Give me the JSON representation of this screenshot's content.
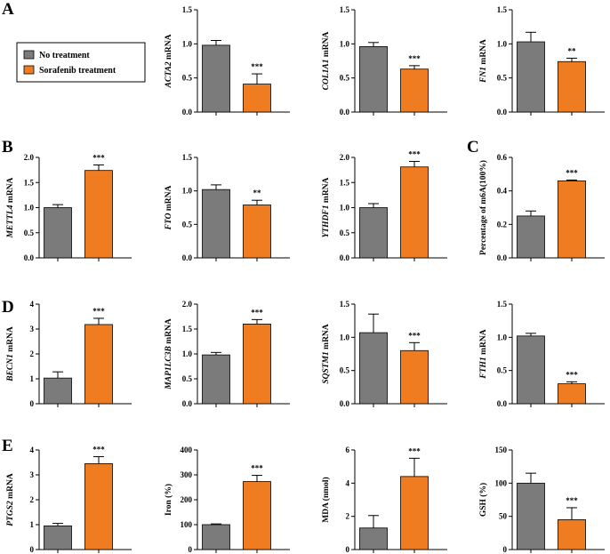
{
  "legend": {
    "entries": [
      {
        "label": "No treatment",
        "color": "#7b7b7b"
      },
      {
        "label": "Sorafenib treatment",
        "color": "#f07c22"
      }
    ]
  },
  "panel_letters": [
    "A",
    "B",
    "C",
    "D",
    "E"
  ],
  "colors": {
    "control": "#7b7b7b",
    "treatment": "#f07c22",
    "axis": "#000000"
  },
  "chart_data": [
    {
      "type": "bar",
      "ylabel": "ACTA2 mRNA",
      "ylabel_italic": "ACTA2",
      "ylabel_rest": " mRNA",
      "ylim": [
        0,
        1.5
      ],
      "yticks": [
        "0.0",
        "0.5",
        "1.0",
        "1.5"
      ],
      "ytick_values": [
        0,
        0.5,
        1.0,
        1.5
      ],
      "values": [
        0.98,
        0.41
      ],
      "errors": [
        0.07,
        0.15
      ],
      "significance": "***"
    },
    {
      "type": "bar",
      "ylabel": "COL1A1 mRNA",
      "ylabel_italic": "COL1A1",
      "ylabel_rest": " mRNA",
      "ylim": [
        0,
        1.5
      ],
      "yticks": [
        "0.0",
        "0.5",
        "1.0",
        "1.5"
      ],
      "ytick_values": [
        0,
        0.5,
        1.0,
        1.5
      ],
      "values": [
        0.96,
        0.63
      ],
      "errors": [
        0.06,
        0.05
      ],
      "significance": "***"
    },
    {
      "type": "bar",
      "ylabel": "FN1 mRNA",
      "ylabel_italic": "FN1",
      "ylabel_rest": " mRNA",
      "ylim": [
        0,
        1.5
      ],
      "yticks": [
        "0.0",
        "0.5",
        "1.0",
        "1.5"
      ],
      "ytick_values": [
        0,
        0.5,
        1.0,
        1.5
      ],
      "values": [
        1.03,
        0.74
      ],
      "errors": [
        0.14,
        0.05
      ],
      "significance": "**"
    },
    {
      "type": "bar",
      "ylabel": "METTL4 mRNA",
      "ylabel_italic": "METTL4",
      "ylabel_rest": " mRNA",
      "ylim": [
        0,
        2.0
      ],
      "yticks": [
        "0.0",
        "0.5",
        "1.0",
        "1.5",
        "2.0"
      ],
      "ytick_values": [
        0,
        0.5,
        1.0,
        1.5,
        2.0
      ],
      "values": [
        1.0,
        1.74
      ],
      "errors": [
        0.06,
        0.11
      ],
      "significance": "***"
    },
    {
      "type": "bar",
      "ylabel": "FTO mRNA",
      "ylabel_italic": "FTO",
      "ylabel_rest": " mRNA",
      "ylim": [
        0,
        1.5
      ],
      "yticks": [
        "0.0",
        "0.5",
        "1.0",
        "1.5"
      ],
      "ytick_values": [
        0,
        0.5,
        1.0,
        1.5
      ],
      "values": [
        1.02,
        0.79
      ],
      "errors": [
        0.07,
        0.07
      ],
      "significance": "**"
    },
    {
      "type": "bar",
      "ylabel": "YTHDF1 mRNA",
      "ylabel_italic": "YTHDF1",
      "ylabel_rest": " mRNA",
      "ylim": [
        0,
        2.0
      ],
      "yticks": [
        "0.0",
        "0.5",
        "1.0",
        "1.5",
        "2.0"
      ],
      "ytick_values": [
        0,
        0.5,
        1.0,
        1.5,
        2.0
      ],
      "values": [
        1.0,
        1.81
      ],
      "errors": [
        0.08,
        0.11
      ],
      "significance": "***"
    },
    {
      "type": "bar",
      "ylabel": "Percentage of m6A(100%)",
      "ylabel_italic": "",
      "ylabel_rest": "Percentage of m6A(100%)",
      "ylim": [
        0,
        0.6
      ],
      "yticks": [
        "0.0",
        "0.2",
        "0.4",
        "0.6"
      ],
      "ytick_values": [
        0,
        0.2,
        0.4,
        0.6
      ],
      "values": [
        0.25,
        0.46
      ],
      "errors": [
        0.03,
        0.005
      ],
      "significance": "***"
    },
    {
      "type": "bar",
      "ylabel": "BECN1 mRNA",
      "ylabel_italic": "BECN1",
      "ylabel_rest": " mRNA",
      "ylim": [
        0,
        4
      ],
      "yticks": [
        "0",
        "1",
        "2",
        "3",
        "4"
      ],
      "ytick_values": [
        0,
        1,
        2,
        3,
        4
      ],
      "values": [
        1.03,
        3.18
      ],
      "errors": [
        0.25,
        0.25
      ],
      "significance": "***"
    },
    {
      "type": "bar",
      "ylabel": "MAP1LC3B mRNA",
      "ylabel_italic": "MAP1LC3B",
      "ylabel_rest": " mRNA",
      "ylim": [
        0,
        2.0
      ],
      "yticks": [
        "0.0",
        "0.5",
        "1.0",
        "1.5",
        "2.0"
      ],
      "ytick_values": [
        0,
        0.5,
        1.0,
        1.5,
        2.0
      ],
      "values": [
        0.98,
        1.6
      ],
      "errors": [
        0.05,
        0.09
      ],
      "significance": "***"
    },
    {
      "type": "bar",
      "ylabel": "SQSTM1 mRNA",
      "ylabel_italic": "SQSTM1",
      "ylabel_rest": " mRNA",
      "ylim": [
        0,
        1.5
      ],
      "yticks": [
        "0.0",
        "0.5",
        "1.0",
        "1.5"
      ],
      "ytick_values": [
        0,
        0.5,
        1.0,
        1.5
      ],
      "values": [
        1.07,
        0.8
      ],
      "errors": [
        0.28,
        0.12
      ],
      "significance": "***"
    },
    {
      "type": "bar",
      "ylabel": "FTH1 mRNA",
      "ylabel_italic": "FTH1",
      "ylabel_rest": " mRNA",
      "ylim": [
        0,
        1.5
      ],
      "yticks": [
        "0.0",
        "0.5",
        "1.0",
        "1.5"
      ],
      "ytick_values": [
        0,
        0.5,
        1.0,
        1.5
      ],
      "values": [
        1.02,
        0.3
      ],
      "errors": [
        0.04,
        0.03
      ],
      "significance": "***"
    },
    {
      "type": "bar",
      "ylabel": "PTGS2 mRNA",
      "ylabel_italic": "PTGS2",
      "ylabel_rest": " mRNA",
      "ylim": [
        0,
        4
      ],
      "yticks": [
        "0",
        "1",
        "2",
        "3",
        "4"
      ],
      "ytick_values": [
        0,
        1,
        2,
        3,
        4
      ],
      "values": [
        0.95,
        3.45
      ],
      "errors": [
        0.1,
        0.28
      ],
      "significance": "***"
    },
    {
      "type": "bar",
      "ylabel": "Iron (%)",
      "ylabel_italic": "",
      "ylabel_rest": "Iron (%)",
      "ylim": [
        0,
        400
      ],
      "yticks": [
        "0",
        "100",
        "200",
        "300",
        "400"
      ],
      "ytick_values": [
        0,
        100,
        200,
        300,
        400
      ],
      "values": [
        100,
        273
      ],
      "errors": [
        3,
        25
      ],
      "significance": "***"
    },
    {
      "type": "bar",
      "ylabel": "MDA (nmol)",
      "ylabel_italic": "",
      "ylabel_rest": "MDA (nmol)",
      "ylim": [
        0,
        6
      ],
      "yticks": [
        "0",
        "2",
        "4",
        "6"
      ],
      "ytick_values": [
        0,
        2,
        4,
        6
      ],
      "values": [
        1.3,
        4.4
      ],
      "errors": [
        0.75,
        1.1
      ],
      "significance": "***"
    },
    {
      "type": "bar",
      "ylabel": "GSH (%)",
      "ylabel_italic": "",
      "ylabel_rest": "GSH (%)",
      "ylim": [
        0,
        150
      ],
      "yticks": [
        "0",
        "50",
        "100",
        "150"
      ],
      "ytick_values": [
        0,
        50,
        100,
        150
      ],
      "values": [
        100,
        45
      ],
      "errors": [
        15,
        18
      ],
      "significance": "***"
    }
  ]
}
